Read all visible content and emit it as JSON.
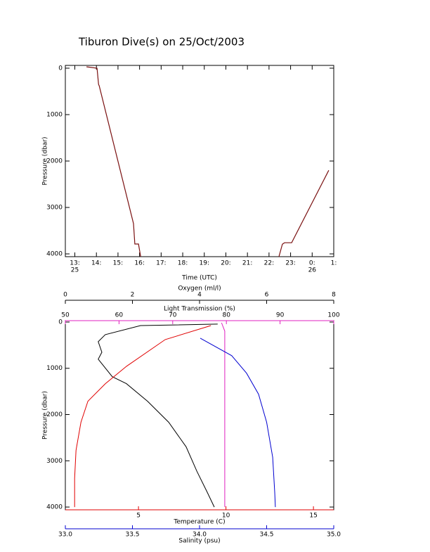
{
  "chart_data": [
    {
      "type": "line",
      "title": "Tiburon Dive(s) on 25/Oct/2003",
      "x_label": "Time (UTC)",
      "y_label": "Pressure (dbar)",
      "xlim": [
        12.56,
        25
      ],
      "ylim": [
        4060,
        -60
      ],
      "xticks": [
        {
          "value": 13,
          "label": "13:"
        },
        {
          "value": 14,
          "label": "14:"
        },
        {
          "value": 15,
          "label": "15:"
        },
        {
          "value": 16,
          "label": "16:"
        },
        {
          "value": 17,
          "label": "17:"
        },
        {
          "value": 18,
          "label": "18:"
        },
        {
          "value": 19,
          "label": "19:"
        },
        {
          "value": 20,
          "label": "20:"
        },
        {
          "value": 21,
          "label": "21:"
        },
        {
          "value": 22,
          "label": "22:"
        },
        {
          "value": 23,
          "label": "23:"
        },
        {
          "value": 24,
          "label": "0:"
        },
        {
          "value": 25,
          "label": "1:"
        }
      ],
      "date_labels": [
        {
          "value": 13,
          "label": "25"
        },
        {
          "value": 24,
          "label": "26"
        }
      ],
      "yticks": [
        0,
        1000,
        2000,
        3000,
        4000
      ],
      "series": [
        {
          "color": "#7a1010",
          "x": [
            13.54,
            14.03,
            14.1,
            14.13,
            15.72,
            15.78,
            15.95,
            16.05,
            null,
            22.46,
            22.62,
            22.72,
            23.05,
            24.77
          ],
          "values": [
            -30,
            0,
            350,
            380,
            3348,
            3788,
            3788,
            4060,
            null,
            4060,
            3790,
            3760,
            3760,
            2200
          ]
        }
      ]
    },
    {
      "type": "profile",
      "y_label": "Pressure (dbar)",
      "ylim": [
        4060,
        -30
      ],
      "yticks": [
        0,
        1000,
        2000,
        3000,
        4000
      ],
      "x_axes": [
        {
          "label": "Oxygen (ml/l)",
          "color": "#000000",
          "side": "top",
          "lim": [
            0,
            8
          ],
          "ticks": [
            0,
            2,
            4,
            6,
            8
          ]
        },
        {
          "label": "Light Transmission (%)",
          "color": "#e020c0",
          "side": "top",
          "lim": [
            50,
            100
          ],
          "ticks": [
            50,
            60,
            70,
            80,
            90,
            100
          ]
        },
        {
          "label": "Temperature (C)",
          "color": "#e00000",
          "side": "bottom",
          "lim": [
            0.82,
            16.16
          ],
          "ticks": [
            5,
            10,
            15
          ]
        },
        {
          "label": "Salinity (psu)",
          "color": "#0000d0",
          "side": "bottom",
          "lim": [
            33,
            35
          ],
          "ticks": [
            {
              "value": 33,
              "label": "33.0"
            },
            {
              "value": 33.5,
              "label": "33.5"
            },
            {
              "value": 34,
              "label": "34.0"
            },
            {
              "value": 34.5,
              "label": "34.5"
            },
            {
              "value": 35,
              "label": "35.0"
            }
          ]
        }
      ],
      "series": [
        {
          "axis": 0,
          "color": "#000000",
          "values": [
            4.54,
            2.24,
            1.19,
            0.98,
            1.09,
            0.98,
            1.4,
            1.82,
            2.45,
            3.08,
            3.6,
            3.92,
            4.23,
            4.44
          ],
          "pressure": [
            45,
            76,
            273,
            424,
            652,
            803,
            1182,
            1333,
            1712,
            2167,
            2697,
            3227,
            3682,
            4000
          ]
        },
        {
          "axis": 1,
          "color": "#e020c0",
          "values": [
            79.1,
            79.7,
            79.7
          ],
          "pressure": [
            15,
            197,
            4000
          ]
        },
        {
          "axis": 2,
          "color": "#e00000",
          "values": [
            9.14,
            6.53,
            4.32,
            3.11,
            2.11,
            1.71,
            1.43,
            1.35,
            1.35
          ],
          "pressure": [
            76,
            379,
            955,
            1333,
            1712,
            2167,
            2773,
            3379,
            4000
          ]
        },
        {
          "axis": 3,
          "color": "#0000d0",
          "values": [
            34.005,
            34.24,
            34.35,
            34.44,
            34.5,
            34.545,
            34.56,
            34.565
          ],
          "pressure": [
            348,
            727,
            1106,
            1561,
            2167,
            2924,
            3682,
            4000
          ]
        }
      ]
    }
  ]
}
